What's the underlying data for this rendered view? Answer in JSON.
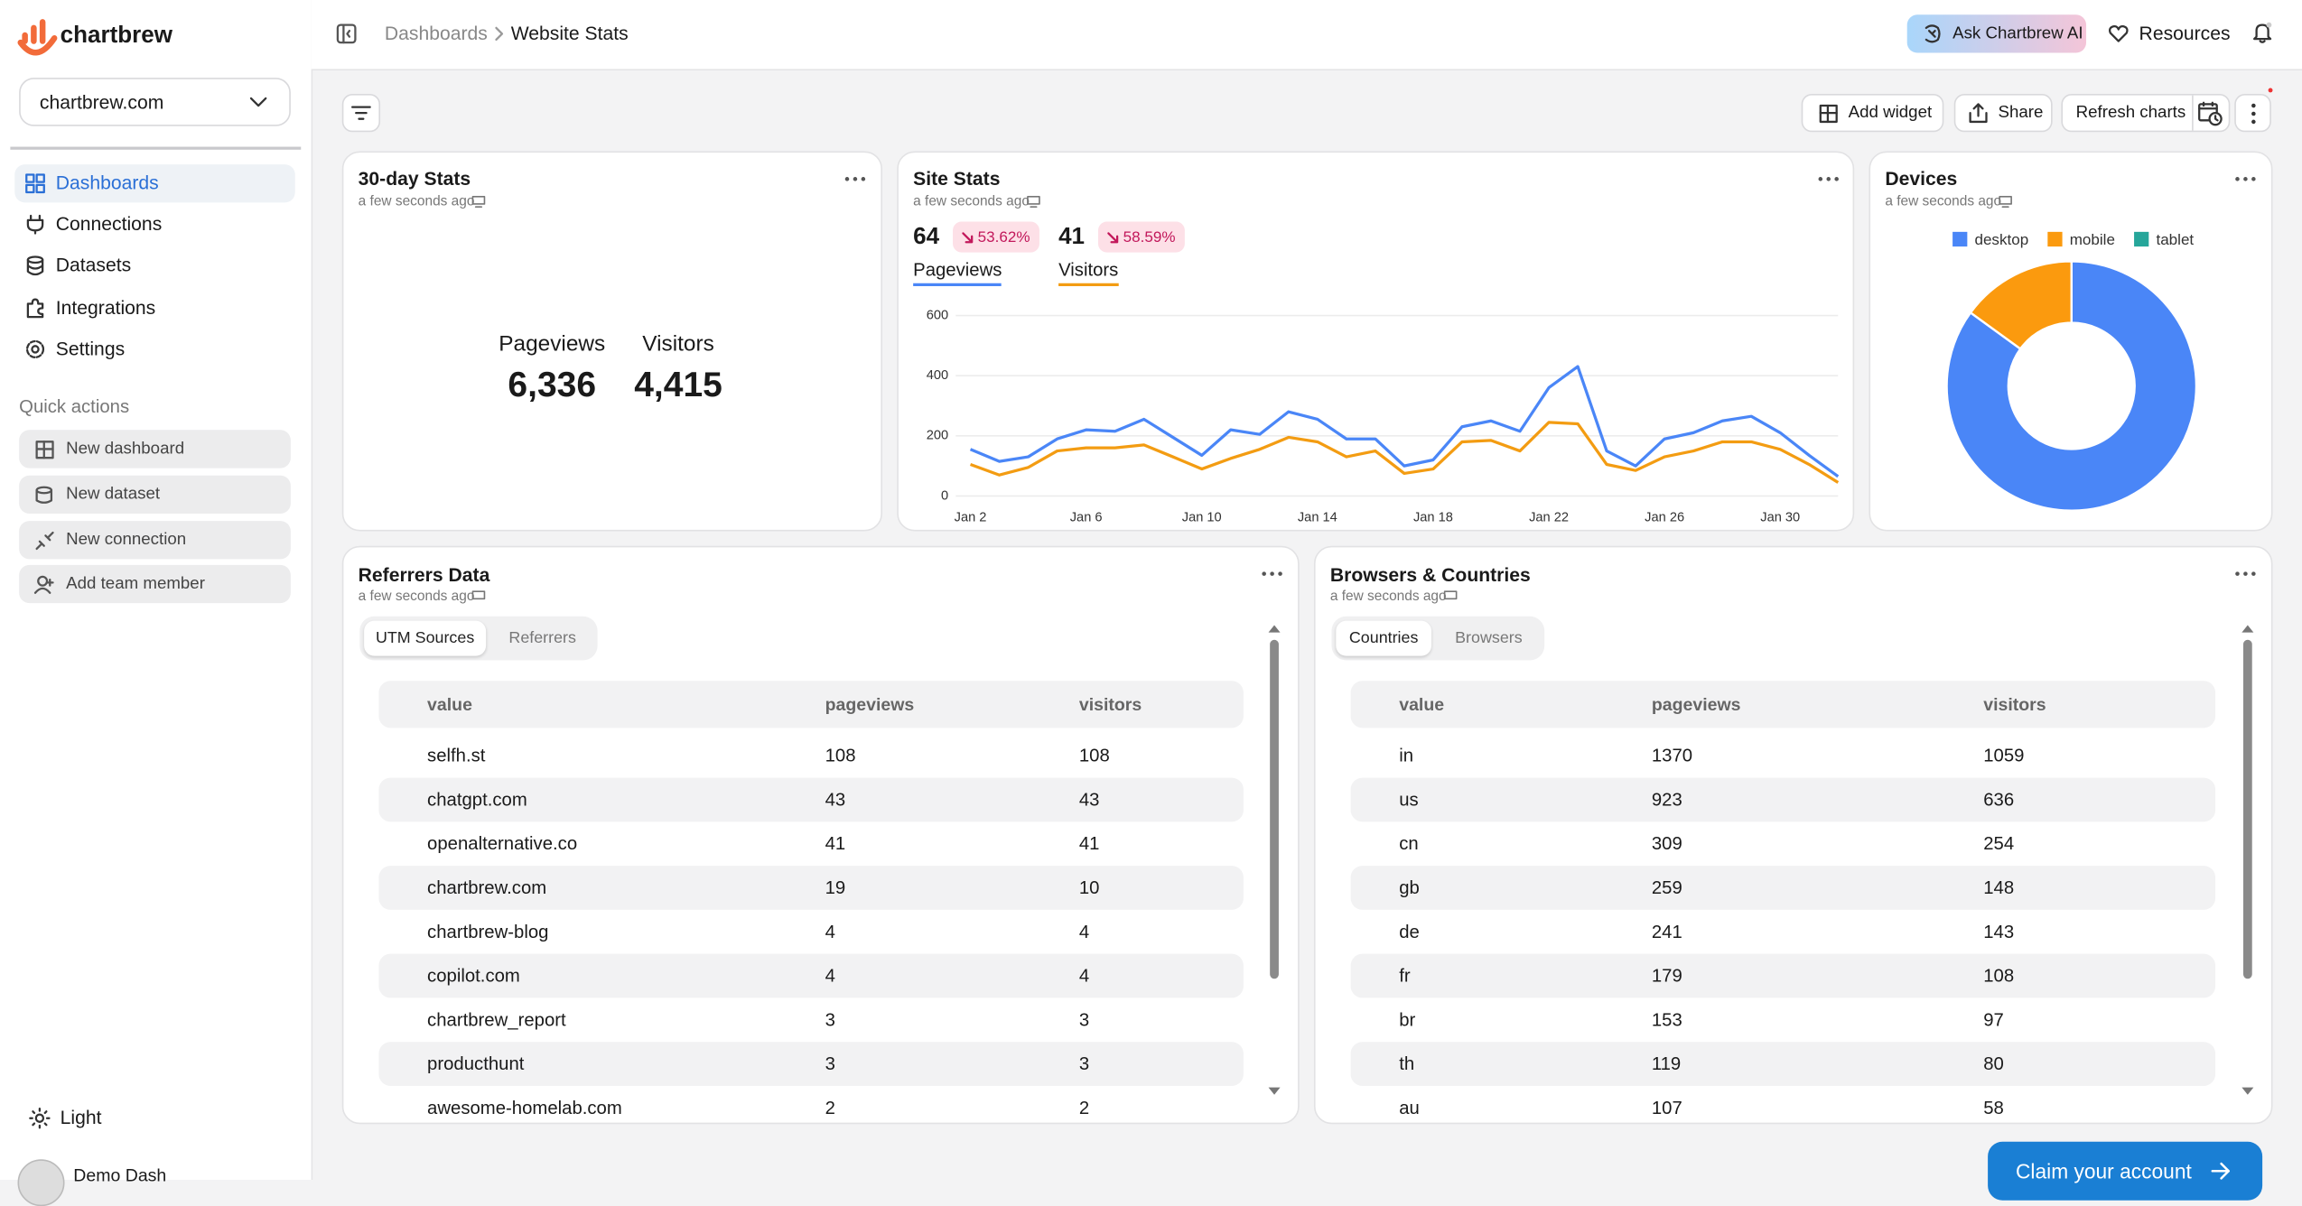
{
  "sidebar": {
    "brand": "chartbrew",
    "project": "chartbrew.com",
    "nav": [
      "Dashboards",
      "Connections",
      "Datasets",
      "Integrations",
      "Settings"
    ],
    "quick_actions_title": "Quick actions",
    "quick_actions": [
      "New dashboard",
      "New dataset",
      "New connection",
      "Add team member"
    ],
    "theme": "Light",
    "user": "Demo Dash"
  },
  "header": {
    "breadcrumb": [
      "Dashboards",
      "Website Stats"
    ],
    "ai_button": "Ask Chartbrew AI",
    "resources": "Resources"
  },
  "toolbar": {
    "add_widget": "Add widget",
    "share": "Share",
    "refresh": "Refresh charts"
  },
  "widgets": {
    "stats": {
      "title": "30-day Stats",
      "updated": "a few seconds ago",
      "kpis": [
        {
          "label": "Pageviews",
          "value": "6,336"
        },
        {
          "label": "Visitors",
          "value": "4,415"
        }
      ]
    },
    "site_stats": {
      "kpis": [
        {
          "value": "64",
          "change": "53.62%"
        },
        {
          "value": "41",
          "change": "58.59%"
        }
      ]
    }
  },
  "chart_data": [
    {
      "type": "line",
      "title": "Site Stats",
      "subtitle": "a few seconds ago",
      "categories": [
        "Jan 2",
        null,
        null,
        null,
        "Jan 6",
        null,
        null,
        null,
        "Jan 10",
        null,
        null,
        null,
        "Jan 14",
        null,
        null,
        null,
        "Jan 18",
        null,
        null,
        null,
        "Jan 22",
        null,
        null,
        null,
        "Jan 26",
        null,
        null,
        null,
        "Jan 30",
        null,
        null
      ],
      "series": [
        {
          "name": "Pageviews",
          "color": "#4a86f7",
          "values": [
            155,
            115,
            130,
            190,
            220,
            215,
            255,
            195,
            135,
            220,
            205,
            280,
            255,
            190,
            190,
            100,
            120,
            230,
            250,
            215,
            360,
            430,
            150,
            100,
            190,
            210,
            250,
            265,
            210,
            135,
            65
          ]
        },
        {
          "name": "Visitors",
          "color": "#f39c12",
          "values": [
            105,
            70,
            95,
            150,
            160,
            160,
            170,
            130,
            90,
            125,
            155,
            195,
            180,
            130,
            150,
            75,
            90,
            180,
            185,
            150,
            245,
            240,
            105,
            85,
            130,
            150,
            180,
            180,
            155,
            105,
            45
          ]
        }
      ],
      "ylim": [
        0,
        600
      ],
      "yticks": [
        0,
        200,
        400,
        600
      ],
      "grid": true
    },
    {
      "type": "pie",
      "title": "Devices",
      "subtitle": "a few seconds ago",
      "donut": true,
      "categories": [
        "desktop",
        "mobile",
        "tablet"
      ],
      "values": [
        85,
        15,
        0
      ],
      "colors": [
        "#4a86f7",
        "#fb9a0e",
        "#26a69a"
      ],
      "legend": "top"
    }
  ],
  "tables": [
    {
      "title": "Referrers Data",
      "updated": "a few seconds ago",
      "tabs": [
        "UTM Sources",
        "Referrers"
      ],
      "columns": [
        "value",
        "pageviews",
        "visitors"
      ],
      "rows": [
        [
          "selfh.st",
          108,
          108
        ],
        [
          "chatgpt.com",
          43,
          43
        ],
        [
          "openalternative.co",
          41,
          41
        ],
        [
          "chartbrew.com",
          19,
          10
        ],
        [
          "chartbrew-blog",
          4,
          4
        ],
        [
          "copilot.com",
          4,
          4
        ],
        [
          "chartbrew_report",
          3,
          3
        ],
        [
          "producthunt",
          3,
          3
        ],
        [
          "awesome-homelab.com",
          2,
          2
        ]
      ]
    },
    {
      "title": "Browsers & Countries",
      "updated": "a few seconds ago",
      "tabs": [
        "Countries",
        "Browsers"
      ],
      "columns": [
        "value",
        "pageviews",
        "visitors"
      ],
      "rows": [
        [
          "in",
          1370,
          1059
        ],
        [
          "us",
          923,
          636
        ],
        [
          "cn",
          309,
          254
        ],
        [
          "gb",
          259,
          148
        ],
        [
          "de",
          241,
          143
        ],
        [
          "fr",
          179,
          108
        ],
        [
          "br",
          153,
          97
        ],
        [
          "th",
          119,
          80
        ],
        [
          "au",
          107,
          58
        ]
      ]
    }
  ],
  "claim": "Claim your account"
}
